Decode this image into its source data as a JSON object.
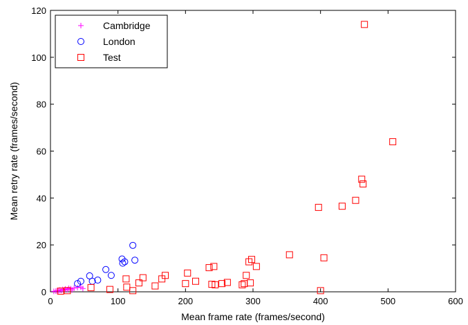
{
  "chart_data": {
    "type": "scatter",
    "xlabel": "Mean frame rate (frames/second)",
    "ylabel": "Mean retry rate (frames/second)",
    "xlim": [
      0,
      600
    ],
    "ylim": [
      0,
      120
    ],
    "xticks": [
      0,
      100,
      200,
      300,
      400,
      500,
      600
    ],
    "yticks": [
      0,
      20,
      40,
      60,
      80,
      100,
      120
    ],
    "grid": false,
    "legend_position": "top-left",
    "series": [
      {
        "name": "Cambridge",
        "marker": "plus",
        "color": "#ff00ff",
        "points": [
          [
            5,
            0.2
          ],
          [
            8,
            0.3
          ],
          [
            10,
            0.5
          ],
          [
            12,
            0.4
          ],
          [
            14,
            0.8
          ],
          [
            16,
            0.6
          ],
          [
            18,
            1.0
          ],
          [
            20,
            0.7
          ],
          [
            22,
            1.2
          ],
          [
            25,
            0.9
          ],
          [
            27,
            1.5
          ],
          [
            30,
            1.3
          ],
          [
            32,
            0.8
          ],
          [
            35,
            1.6
          ],
          [
            40,
            1.8
          ],
          [
            45,
            2.0
          ],
          [
            48,
            1.4
          ]
        ]
      },
      {
        "name": "London",
        "marker": "circle",
        "color": "#0000ff",
        "points": [
          [
            40,
            3.5
          ],
          [
            45,
            4.5
          ],
          [
            58,
            6.8
          ],
          [
            62,
            4.5
          ],
          [
            70,
            5.0
          ],
          [
            82,
            9.5
          ],
          [
            90,
            7.0
          ],
          [
            106,
            14.0
          ],
          [
            107,
            12.2
          ],
          [
            110,
            12.8
          ],
          [
            122,
            19.8
          ],
          [
            125,
            13.5
          ]
        ]
      },
      {
        "name": "Test",
        "marker": "square",
        "color": "#ff0000",
        "points": [
          [
            15,
            0.3
          ],
          [
            25,
            0.5
          ],
          [
            60,
            1.8
          ],
          [
            88,
            1.0
          ],
          [
            112,
            5.5
          ],
          [
            113,
            2.0
          ],
          [
            122,
            0.5
          ],
          [
            131,
            3.8
          ],
          [
            137,
            6.0
          ],
          [
            155,
            2.5
          ],
          [
            165,
            5.5
          ],
          [
            170,
            7.0
          ],
          [
            200,
            3.5
          ],
          [
            203,
            8.0
          ],
          [
            215,
            4.5
          ],
          [
            235,
            10.3
          ],
          [
            239,
            3.2
          ],
          [
            242,
            10.8
          ],
          [
            244,
            3.0
          ],
          [
            254,
            3.5
          ],
          [
            262,
            4.0
          ],
          [
            284,
            3.0
          ],
          [
            287,
            3.5
          ],
          [
            290,
            7.0
          ],
          [
            294,
            12.8
          ],
          [
            296,
            3.8
          ],
          [
            298,
            13.8
          ],
          [
            305,
            10.8
          ],
          [
            354,
            15.8
          ],
          [
            397,
            36.0
          ],
          [
            400,
            0.5
          ],
          [
            405,
            14.5
          ],
          [
            432,
            36.5
          ],
          [
            452,
            39.0
          ],
          [
            461,
            48.0
          ],
          [
            463,
            46.0
          ],
          [
            465,
            114.0
          ],
          [
            507,
            64.0
          ]
        ]
      }
    ]
  }
}
